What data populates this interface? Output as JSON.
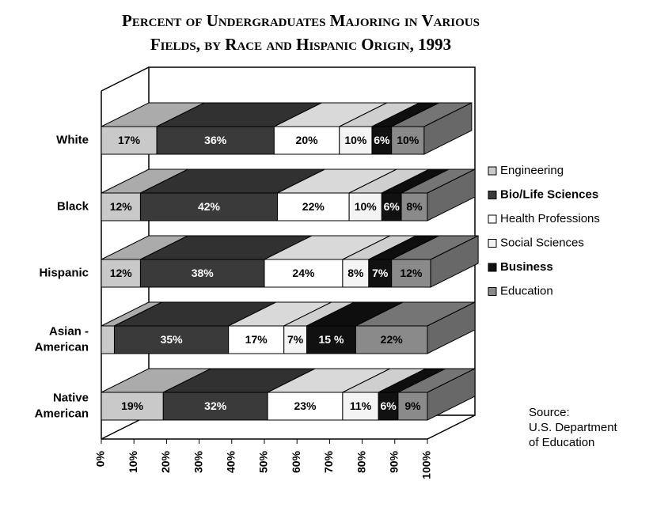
{
  "chart_data": {
    "type": "bar3d_stacked_horizontal",
    "title": [
      "Percent of Undergraduates Majoring in Various",
      "Fields, by Race and Hispanic Origin, 1993"
    ],
    "categories": [
      [
        "White"
      ],
      [
        "Black"
      ],
      [
        "Hispanic"
      ],
      [
        "Asian -",
        "American"
      ],
      [
        "Native",
        "American"
      ]
    ],
    "series": [
      {
        "name": "Engineering",
        "color": "#c9c9c9",
        "values": [
          17,
          12,
          12,
          4,
          19
        ],
        "value_labels": [
          "17%",
          "12%",
          "12%",
          null,
          "19%"
        ]
      },
      {
        "name": "Bio/Life Sciences",
        "color": "#3a3a3a",
        "values": [
          36,
          42,
          38,
          35,
          32
        ],
        "value_labels": [
          "36%",
          "42%",
          "38%",
          "35%",
          "32%"
        ]
      },
      {
        "name": "Health Professions",
        "color": "#ffffff",
        "values": [
          20,
          22,
          24,
          17,
          23
        ],
        "value_labels": [
          "20%",
          "22%",
          "24%",
          "17%",
          "23%"
        ]
      },
      {
        "name": "Social Sciences",
        "color": "#f4f4f4",
        "values": [
          10,
          10,
          8,
          7,
          11
        ],
        "value_labels": [
          "10%",
          "10%",
          "8%",
          "7%",
          "11%"
        ]
      },
      {
        "name": "Business",
        "color": "#111111",
        "values": [
          6,
          6,
          7,
          15,
          6
        ],
        "value_labels": [
          "6%",
          "6%",
          "7%",
          "15 %",
          "6%"
        ]
      },
      {
        "name": "Education",
        "color": "#8a8a8a",
        "values": [
          10,
          8,
          12,
          22,
          9
        ],
        "value_labels": [
          "10%",
          "8%",
          "12%",
          "22%",
          "9%"
        ]
      }
    ],
    "xlim": [
      0,
      100
    ],
    "xticks": [
      {
        "value": 0,
        "label": "0%"
      },
      {
        "value": 10,
        "label": "10%"
      },
      {
        "value": 20,
        "label": "20%"
      },
      {
        "value": 30,
        "label": "30%"
      },
      {
        "value": 40,
        "label": "40%"
      },
      {
        "value": 50,
        "label": "50%"
      },
      {
        "value": 60,
        "label": "60%"
      },
      {
        "value": 70,
        "label": "70%"
      },
      {
        "value": 80,
        "label": "80%"
      },
      {
        "value": 90,
        "label": "90%"
      },
      {
        "value": 100,
        "label": "100%"
      }
    ],
    "source": [
      "Source:",
      "U.S. Department",
      "of Education"
    ]
  }
}
